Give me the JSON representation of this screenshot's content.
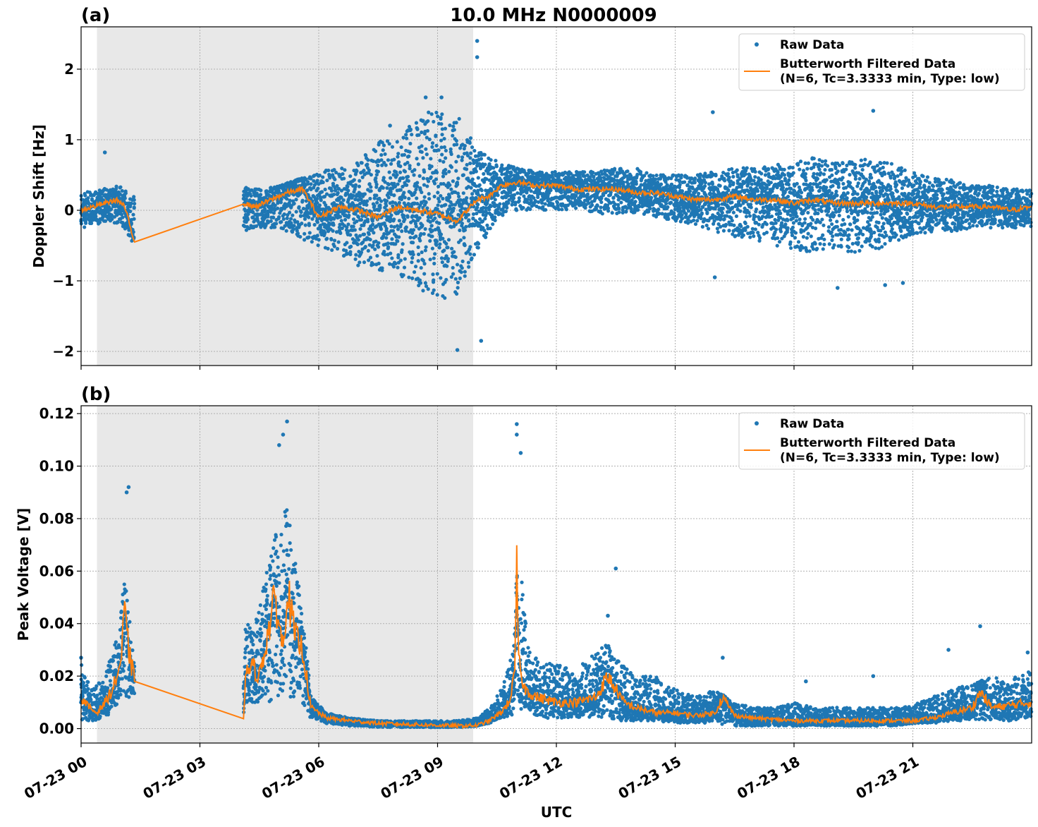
{
  "figure": {
    "title": "10.0 MHz N0000009",
    "xlabel": "UTC"
  },
  "chart_data": [
    {
      "type": "scatter",
      "panel_label": "(a)",
      "ylabel": "Doppler Shift [Hz]",
      "xlim_hours": [
        0,
        24
      ],
      "ylim": [
        -2.2,
        2.6
      ],
      "yticks": [
        -2,
        -1,
        0,
        1,
        2
      ],
      "ytick_labels": [
        "−2",
        "−1",
        "0",
        "1",
        "2"
      ],
      "xtick_hours": [
        0,
        3,
        6,
        9,
        12,
        15,
        18,
        21
      ],
      "xtick_labels": [
        "07-23 00",
        "07-23 03",
        "07-23 06",
        "07-23 09",
        "07-23 12",
        "07-23 15",
        "07-23 18",
        "07-23 21"
      ],
      "grid": true,
      "legend": "top-right",
      "shaded_span_hours": [
        0.4,
        9.9
      ],
      "shade_color": "#e8e8e8",
      "gap_hours": [
        1.35,
        4.1
      ],
      "series": [
        {
          "name": "Raw Data",
          "color": "#1f77b4",
          "x_hours": [
            0.0,
            0.5,
            1.0,
            1.3,
            4.1,
            4.5,
            5.0,
            5.5,
            6.0,
            6.5,
            7.0,
            7.5,
            8.0,
            8.5,
            9.0,
            9.5,
            10.0,
            10.5,
            11.0,
            11.5,
            12.0,
            12.5,
            13.0,
            13.5,
            14.0,
            14.5,
            15.0,
            15.5,
            16.0,
            16.5,
            17.0,
            17.5,
            18.0,
            18.5,
            19.0,
            19.5,
            20.0,
            20.5,
            21.0,
            21.5,
            22.0,
            22.5,
            23.0,
            23.5,
            24.0
          ],
          "upper": [
            0.25,
            0.3,
            0.35,
            0.2,
            0.35,
            0.3,
            0.35,
            0.45,
            0.55,
            0.6,
            0.7,
            1.0,
            1.1,
            1.3,
            1.5,
            1.4,
            0.9,
            0.7,
            0.6,
            0.55,
            0.55,
            0.55,
            0.55,
            0.6,
            0.6,
            0.5,
            0.5,
            0.5,
            0.55,
            0.6,
            0.6,
            0.65,
            0.7,
            0.75,
            0.7,
            0.7,
            0.75,
            0.65,
            0.55,
            0.45,
            0.45,
            0.35,
            0.35,
            0.3,
            0.3
          ],
          "lower": [
            -0.25,
            -0.2,
            -0.2,
            -0.45,
            -0.3,
            -0.25,
            -0.25,
            -0.4,
            -0.5,
            -0.6,
            -0.8,
            -0.9,
            -0.9,
            -1.1,
            -1.3,
            -1.2,
            -0.6,
            -0.1,
            0.0,
            0.0,
            0.0,
            0.0,
            -0.05,
            -0.05,
            -0.05,
            -0.1,
            -0.15,
            -0.2,
            -0.3,
            -0.4,
            -0.45,
            -0.5,
            -0.55,
            -0.6,
            -0.55,
            -0.6,
            -0.6,
            -0.45,
            -0.35,
            -0.3,
            -0.3,
            -0.25,
            -0.25,
            -0.25,
            -0.25
          ],
          "outliers": [
            [
              0.6,
              0.82
            ],
            [
              9.5,
              -1.98
            ],
            [
              10.0,
              2.4
            ],
            [
              10.0,
              2.17
            ],
            [
              10.1,
              -1.85
            ],
            [
              15.95,
              1.39
            ],
            [
              16.0,
              -0.95
            ],
            [
              19.1,
              -1.1
            ],
            [
              20.0,
              1.41
            ],
            [
              20.3,
              -1.06
            ],
            [
              20.75,
              -1.03
            ],
            [
              8.7,
              1.6
            ],
            [
              9.1,
              1.6
            ],
            [
              7.8,
              1.2
            ]
          ]
        },
        {
          "name": "Butterworth Filtered Data\n(N=6, Tc=3.3333 min, Type: low)",
          "color": "#ff7f0e",
          "x_hours": [
            0.0,
            0.3,
            0.6,
            0.9,
            1.1,
            1.35,
            4.1,
            4.4,
            4.8,
            5.2,
            5.6,
            5.8,
            6.0,
            6.5,
            7.0,
            7.5,
            8.0,
            8.5,
            9.0,
            9.5,
            10.0,
            10.3,
            10.6,
            11.0,
            11.5,
            12.0,
            12.5,
            13.0,
            13.5,
            14.0,
            14.5,
            15.0,
            15.5,
            16.0,
            16.5,
            17.0,
            17.5,
            18.0,
            18.5,
            19.0,
            19.5,
            20.0,
            20.5,
            21.0,
            21.5,
            22.0,
            22.5,
            23.0,
            23.5,
            24.0
          ],
          "y": [
            0.0,
            0.05,
            0.1,
            0.15,
            0.05,
            -0.45,
            0.1,
            0.05,
            0.15,
            0.25,
            0.3,
            0.1,
            -0.1,
            0.05,
            0.0,
            -0.1,
            0.05,
            0.0,
            -0.05,
            -0.15,
            0.15,
            0.2,
            0.35,
            0.4,
            0.35,
            0.35,
            0.3,
            0.3,
            0.3,
            0.25,
            0.25,
            0.2,
            0.15,
            0.15,
            0.2,
            0.15,
            0.15,
            0.1,
            0.15,
            0.1,
            0.1,
            0.1,
            0.1,
            0.1,
            0.05,
            0.05,
            0.05,
            0.05,
            0.0,
            0.05
          ]
        }
      ]
    },
    {
      "type": "scatter",
      "panel_label": "(b)",
      "ylabel": "Peak Voltage [V]",
      "xlim_hours": [
        0,
        24
      ],
      "ylim": [
        -0.0055,
        0.123
      ],
      "yticks": [
        0.0,
        0.02,
        0.04,
        0.06,
        0.08,
        0.1,
        0.12
      ],
      "ytick_labels": [
        "0.00",
        "0.02",
        "0.04",
        "0.06",
        "0.08",
        "0.10",
        "0.12"
      ],
      "xtick_hours": [
        0,
        3,
        6,
        9,
        12,
        15,
        18,
        21
      ],
      "xtick_labels": [
        "07-23 00",
        "07-23 03",
        "07-23 06",
        "07-23 09",
        "07-23 12",
        "07-23 15",
        "07-23 18",
        "07-23 21"
      ],
      "grid": true,
      "legend": "top-right",
      "shaded_span_hours": [
        0.4,
        9.9
      ],
      "shade_color": "#e8e8e8",
      "gap_hours": [
        1.35,
        4.1
      ],
      "series": [
        {
          "name": "Raw Data",
          "color": "#1f77b4",
          "x_hours": [
            0.0,
            0.3,
            0.6,
            0.9,
            1.1,
            1.3,
            4.1,
            4.4,
            4.7,
            5.0,
            5.2,
            5.5,
            5.8,
            6.2,
            6.8,
            7.5,
            8.5,
            9.5,
            10.0,
            10.3,
            10.6,
            10.9,
            11.1,
            11.3,
            11.6,
            12.0,
            12.5,
            13.0,
            13.3,
            13.6,
            14.0,
            14.5,
            15.0,
            15.5,
            16.0,
            16.5,
            17.0,
            17.5,
            18.0,
            18.5,
            19.0,
            19.5,
            20.0,
            20.5,
            21.0,
            21.5,
            22.0,
            22.5,
            23.0,
            23.5,
            24.0
          ],
          "upper": [
            0.025,
            0.015,
            0.02,
            0.035,
            0.06,
            0.03,
            0.04,
            0.04,
            0.06,
            0.08,
            0.085,
            0.06,
            0.012,
            0.006,
            0.004,
            0.003,
            0.003,
            0.003,
            0.004,
            0.008,
            0.015,
            0.03,
            0.06,
            0.03,
            0.025,
            0.025,
            0.022,
            0.03,
            0.032,
            0.025,
            0.02,
            0.02,
            0.015,
            0.012,
            0.015,
            0.01,
            0.008,
            0.008,
            0.01,
            0.008,
            0.008,
            0.008,
            0.008,
            0.008,
            0.009,
            0.012,
            0.015,
            0.017,
            0.02,
            0.02,
            0.022
          ],
          "lower": [
            0.003,
            0.003,
            0.004,
            0.008,
            0.012,
            0.012,
            0.01,
            0.01,
            0.01,
            0.012,
            0.012,
            0.01,
            0.004,
            0.002,
            0.001,
            0.0005,
            0.0005,
            0.0005,
            0.001,
            0.002,
            0.004,
            0.005,
            0.006,
            0.006,
            0.004,
            0.004,
            0.004,
            0.004,
            0.004,
            0.003,
            0.003,
            0.003,
            0.002,
            0.002,
            0.002,
            0.001,
            0.001,
            0.001,
            0.001,
            0.001,
            0.001,
            0.001,
            0.001,
            0.001,
            0.002,
            0.002,
            0.003,
            0.003,
            0.003,
            0.003,
            0.004
          ],
          "outliers": [
            [
              1.2,
              0.092
            ],
            [
              1.15,
              0.09
            ],
            [
              5.2,
              0.117
            ],
            [
              5.1,
              0.112
            ],
            [
              5.0,
              0.108
            ],
            [
              11.0,
              0.116
            ],
            [
              11.0,
              0.112
            ],
            [
              11.1,
              0.105
            ],
            [
              13.5,
              0.061
            ],
            [
              13.3,
              0.043
            ],
            [
              16.2,
              0.027
            ],
            [
              18.3,
              0.018
            ],
            [
              20.0,
              0.02
            ],
            [
              21.9,
              0.03
            ],
            [
              22.7,
              0.039
            ],
            [
              23.9,
              0.029
            ],
            [
              0.0,
              0.027
            ]
          ]
        },
        {
          "name": "Butterworth Filtered Data\n(N=6, Tc=3.3333 min, Type: low)",
          "color": "#ff7f0e",
          "x_hours": [
            0.0,
            0.2,
            0.4,
            0.6,
            0.8,
            1.0,
            1.1,
            1.2,
            1.35,
            4.1,
            4.15,
            4.3,
            4.5,
            4.7,
            4.9,
            5.0,
            5.1,
            5.2,
            5.4,
            5.6,
            5.8,
            6.2,
            6.8,
            7.5,
            8.5,
            9.5,
            10.0,
            10.3,
            10.6,
            10.8,
            10.95,
            11.0,
            11.05,
            11.2,
            11.5,
            12.0,
            12.5,
            13.0,
            13.3,
            13.5,
            13.7,
            14.0,
            14.5,
            15.0,
            15.5,
            16.0,
            16.2,
            16.5,
            17.0,
            18.0,
            19.0,
            20.0,
            21.0,
            21.5,
            22.0,
            22.5,
            22.7,
            23.0,
            23.5,
            24.0
          ],
          "y": [
            0.012,
            0.008,
            0.006,
            0.01,
            0.015,
            0.025,
            0.044,
            0.03,
            0.018,
            0.004,
            0.02,
            0.024,
            0.02,
            0.035,
            0.05,
            0.04,
            0.03,
            0.054,
            0.035,
            0.03,
            0.008,
            0.004,
            0.003,
            0.002,
            0.0015,
            0.001,
            0.0012,
            0.003,
            0.006,
            0.01,
            0.02,
            0.062,
            0.025,
            0.015,
            0.012,
            0.01,
            0.01,
            0.012,
            0.02,
            0.015,
            0.01,
            0.008,
            0.006,
            0.006,
            0.005,
            0.006,
            0.012,
            0.005,
            0.004,
            0.003,
            0.003,
            0.003,
            0.003,
            0.004,
            0.006,
            0.008,
            0.014,
            0.008,
            0.009,
            0.01
          ]
        }
      ]
    }
  ]
}
